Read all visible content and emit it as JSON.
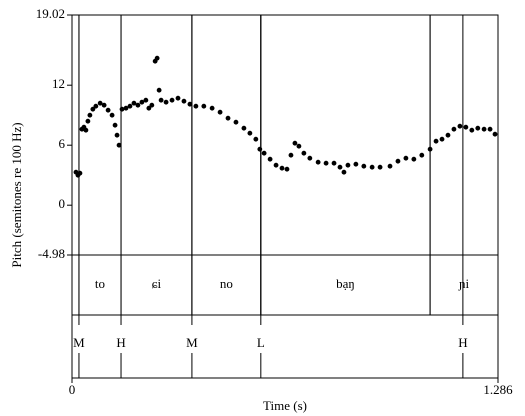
{
  "chart_data": {
    "type": "scatter",
    "y_label": "Pitch (semitones re 100 Hz)",
    "x_label": "Time (s)",
    "color": "#000000",
    "xlim": [
      0,
      1.286
    ],
    "xticks": [
      0,
      1.286
    ],
    "ylim": [
      -4.98,
      19.02
    ],
    "yticks": [
      19.02,
      12,
      6,
      0,
      -4.98
    ],
    "x": [
      0.012,
      0.018,
      0.024,
      0.03,
      0.036,
      0.042,
      0.048,
      0.054,
      0.063,
      0.072,
      0.085,
      0.097,
      0.109,
      0.121,
      0.13,
      0.136,
      0.142,
      0.151,
      0.163,
      0.175,
      0.187,
      0.199,
      0.211,
      0.223,
      0.232,
      0.241,
      0.251,
      0.257,
      0.263,
      0.269,
      0.284,
      0.302,
      0.32,
      0.338,
      0.356,
      0.374,
      0.398,
      0.423,
      0.447,
      0.471,
      0.495,
      0.519,
      0.537,
      0.555,
      0.567,
      0.58,
      0.598,
      0.616,
      0.634,
      0.649,
      0.661,
      0.673,
      0.685,
      0.7,
      0.718,
      0.743,
      0.767,
      0.791,
      0.809,
      0.821,
      0.833,
      0.857,
      0.881,
      0.906,
      0.93,
      0.96,
      0.984,
      1.008,
      1.032,
      1.056,
      1.081,
      1.099,
      1.117,
      1.135,
      1.153,
      1.171,
      1.189,
      1.207,
      1.225,
      1.244,
      1.262,
      1.277
    ],
    "values": [
      3.3,
      3.0,
      3.2,
      7.6,
      7.8,
      7.5,
      8.4,
      9.0,
      9.6,
      9.9,
      10.2,
      10.0,
      9.5,
      9.0,
      8.0,
      7.0,
      6.0,
      9.6,
      9.7,
      9.9,
      10.2,
      10.0,
      10.3,
      10.5,
      9.7,
      10.0,
      14.4,
      14.7,
      11.5,
      10.5,
      10.3,
      10.5,
      10.7,
      10.4,
      10.1,
      9.9,
      9.9,
      9.7,
      9.3,
      8.7,
      8.3,
      7.7,
      7.2,
      6.6,
      5.6,
      5.2,
      4.6,
      4.0,
      3.7,
      3.6,
      5.0,
      6.2,
      5.9,
      5.2,
      4.7,
      4.3,
      4.2,
      4.2,
      3.8,
      3.3,
      4.0,
      4.1,
      3.9,
      3.8,
      3.8,
      3.9,
      4.4,
      4.7,
      4.6,
      5.0,
      5.6,
      6.4,
      6.6,
      7.0,
      7.6,
      7.9,
      7.8,
      7.5,
      7.7,
      7.6,
      7.6,
      7.1
    ],
    "intervals": [
      {
        "start": 0.021,
        "end": 0.148,
        "label": "to"
      },
      {
        "start": 0.148,
        "end": 0.362,
        "label": "ɕi"
      },
      {
        "start": 0.362,
        "end": 0.57,
        "label": "no"
      },
      {
        "start": 0.57,
        "end": 1.081,
        "label": "bạŋ"
      },
      {
        "start": 1.081,
        "end": 1.286,
        "label": "ɲi"
      }
    ],
    "points": [
      {
        "time": 0.021,
        "label": "M"
      },
      {
        "time": 0.148,
        "label": "H"
      },
      {
        "time": 0.362,
        "label": "M"
      },
      {
        "time": 0.57,
        "label": "L"
      },
      {
        "time": 1.18,
        "label": "H"
      }
    ]
  }
}
